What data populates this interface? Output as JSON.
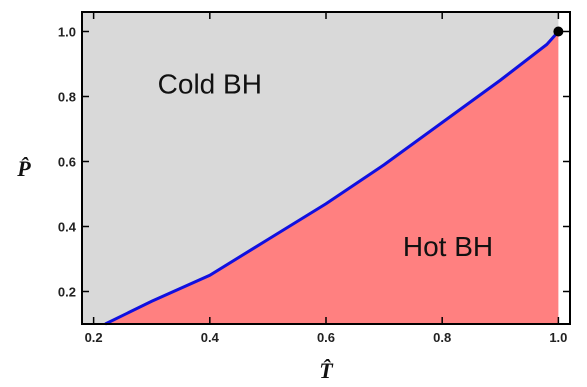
{
  "chart_data": {
    "type": "area",
    "xlabel": "T̂",
    "ylabel": "P̂",
    "xlim": [
      0.18,
      1.02
    ],
    "ylim": [
      0.1,
      1.06
    ],
    "x_ticks": [
      "0.2",
      "0.4",
      "0.6",
      "0.8",
      "1.0"
    ],
    "y_ticks": [
      "0.2",
      "0.4",
      "0.6",
      "0.8",
      "1.0"
    ],
    "x_tick_values": [
      0.2,
      0.4,
      0.6,
      0.8,
      1.0
    ],
    "y_tick_values": [
      0.2,
      0.4,
      0.6,
      0.8,
      1.0
    ],
    "coexistence_curve": {
      "x": [
        0.22,
        0.3,
        0.4,
        0.5,
        0.6,
        0.7,
        0.8,
        0.9,
        0.98,
        1.0
      ],
      "y": [
        0.1,
        0.17,
        0.25,
        0.36,
        0.47,
        0.59,
        0.72,
        0.85,
        0.96,
        1.0
      ]
    },
    "critical_point": {
      "x": 1.0,
      "y": 1.0
    },
    "regions": [
      {
        "label": "Cold BH",
        "x": 0.4,
        "y": 0.84
      },
      {
        "label": "Hot BH",
        "x": 0.81,
        "y": 0.34
      }
    ],
    "colors": {
      "cold_region": "#d9d9d9",
      "hot_region": "#ff8080",
      "curve": "#1010e0",
      "point": "#000000",
      "frame": "#000000"
    }
  }
}
